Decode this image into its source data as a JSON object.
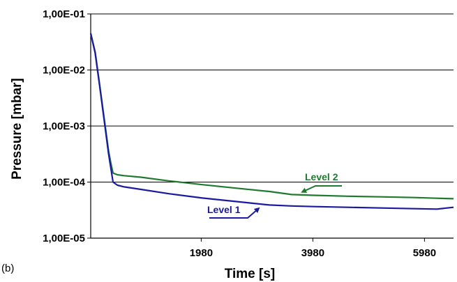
{
  "panel_label": "(b)",
  "chart_data": {
    "type": "line",
    "xlabel": "Time [s]",
    "ylabel": "Pressure [mbar]",
    "y_scale": "log",
    "xlim": [
      0,
      6500
    ],
    "ylim": [
      1e-05,
      0.1
    ],
    "x_tick_labels": [
      "1980",
      "3980",
      "5980"
    ],
    "x_tick_values": [
      1980,
      3980,
      5980
    ],
    "y_tick_labels": [
      "1,00E-05",
      "1,00E-04",
      "1,00E-03",
      "1,00E-02",
      "1,00E-01"
    ],
    "y_tick_values": [
      1e-05,
      0.0001,
      0.001,
      0.01,
      0.1
    ],
    "grid": "horizontal",
    "series": [
      {
        "name": "Level 1",
        "color": "#1a1aa0",
        "x": [
          0,
          80,
          160,
          240,
          320,
          360,
          400,
          480,
          600,
          900,
          1400,
          2000,
          2600,
          3200,
          3600,
          4000,
          4600,
          5200,
          5800,
          6200,
          6500
        ],
        "y": [
          0.045,
          0.02,
          0.0052,
          0.0013,
          0.00032,
          0.00018,
          0.0001,
          8.8e-05,
          8.2e-05,
          7.4e-05,
          6.2e-05,
          5.2e-05,
          4.5e-05,
          3.9e-05,
          3.75e-05,
          3.65e-05,
          3.55e-05,
          3.45e-05,
          3.35e-05,
          3.3e-05,
          3.55e-05
        ]
      },
      {
        "name": "Level 2",
        "color": "#1e7a2e",
        "x": [
          0,
          80,
          160,
          240,
          320,
          360,
          400,
          480,
          600,
          900,
          1400,
          2000,
          2600,
          3200,
          3600,
          4000,
          4600,
          5200,
          5800,
          6200,
          6500
        ],
        "y": [
          0.045,
          0.021,
          0.0055,
          0.0014,
          0.00036,
          0.00022,
          0.000145,
          0.000135,
          0.00013,
          0.000122,
          0.000105,
          9e-05,
          7.8e-05,
          6.8e-05,
          6e-05,
          5.8e-05,
          5.6e-05,
          5.45e-05,
          5.3e-05,
          5.15e-05,
          5.05e-05
        ]
      }
    ],
    "annotations": [
      {
        "text": "Level 1",
        "color": "#1a1aa0",
        "arrow_to": [
          3000,
          4.05e-05
        ]
      },
      {
        "text": "Level 2",
        "color": "#1e7a2e",
        "arrow_to": [
          3750,
          5.92e-05
        ]
      }
    ]
  }
}
